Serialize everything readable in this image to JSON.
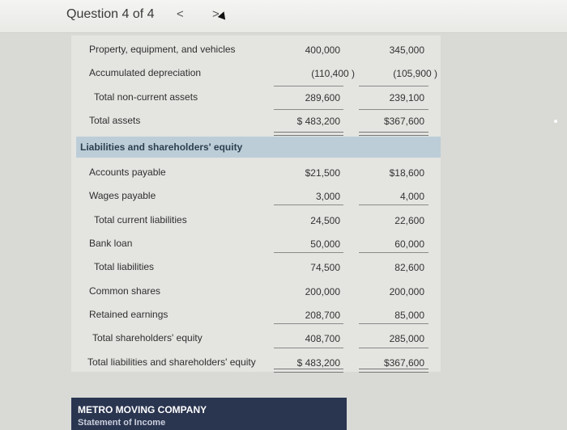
{
  "header": {
    "question_label": "Question 4 of 4",
    "prev": "<",
    "next": ">"
  },
  "rows": [
    {
      "label": "Property, equipment, and vehicles",
      "v1": "400,000",
      "v2": "345,000"
    },
    {
      "label": "Accumulated depreciation",
      "v1": "(110,400  )",
      "v2": "(105,900  )"
    },
    {
      "label": "Total non-current assets",
      "v1": "289,600",
      "v2": "239,100"
    },
    {
      "label": "Total assets",
      "v1": "$ 483,200",
      "v2": "$367,600"
    },
    {
      "label": "Accounts payable",
      "v1": "$21,500",
      "v2": "$18,600"
    },
    {
      "label": "Wages payable",
      "v1": "3,000",
      "v2": "4,000"
    },
    {
      "label": "Total current liabilities",
      "v1": "24,500",
      "v2": "22,600"
    },
    {
      "label": "Bank loan",
      "v1": "50,000",
      "v2": "60,000"
    },
    {
      "label": "Total liabilities",
      "v1": "74,500",
      "v2": "82,600"
    },
    {
      "label": "Common shares",
      "v1": "200,000",
      "v2": "200,000"
    },
    {
      "label": "Retained earnings",
      "v1": "208,700",
      "v2": "85,000"
    },
    {
      "label": "Total shareholders' equity",
      "v1": "408,700",
      "v2": "285,000"
    },
    {
      "label": "Total liabilities and shareholders' equity",
      "v1": "$ 483,200",
      "v2": "$367,600"
    }
  ],
  "section_header": "Liabilities and shareholders' equity",
  "company": {
    "name": "METRO MOVING COMPANY",
    "subtitle": "Statement of Income"
  }
}
